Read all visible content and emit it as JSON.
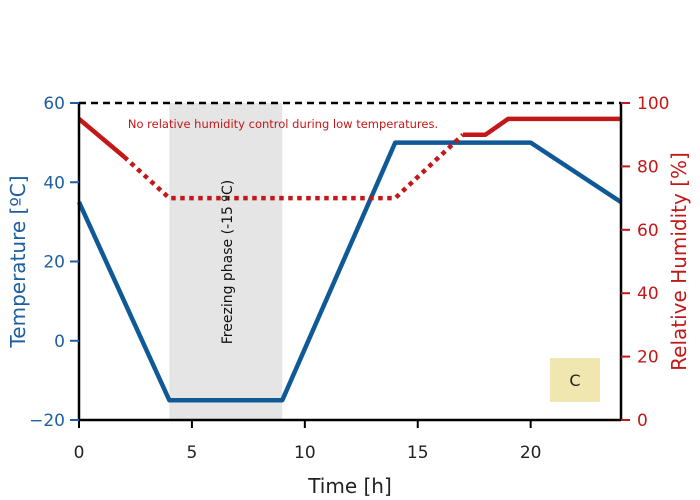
{
  "chart_data": {
    "type": "line",
    "title": "",
    "xlabel": "Time [h]",
    "ylabel_left": "Temperature [ºC]",
    "ylabel_right": "Relative Humidity [%]",
    "xlim": [
      0,
      24
    ],
    "ylim_left": [
      -20,
      60
    ],
    "ylim_right": [
      0,
      100
    ],
    "grid": false,
    "legend": "none",
    "x_ticks": [
      "0",
      "5",
      "10",
      "15",
      "20"
    ],
    "y_left_ticks": [
      "60",
      "40",
      "20",
      "0",
      "−20"
    ],
    "y_right_ticks": [
      "100",
      "80",
      "60",
      "40",
      "20",
      "0"
    ],
    "colors": {
      "temperature": "#0f5a96",
      "humidity": "#c41818",
      "left_axis": "#1f5f9f",
      "right_axis": "#c41818",
      "shade": "#e5e5e5",
      "badge": "#f0e6b0"
    },
    "series": [
      {
        "axis": "left",
        "style": "solid",
        "x": [
          0,
          4,
          9,
          14,
          20,
          24
        ],
        "y": [
          35,
          -15,
          -15,
          50,
          50,
          35
        ]
      },
      {
        "axis": "right",
        "style": "solid",
        "x": [
          0,
          2
        ],
        "y": [
          95,
          83
        ]
      },
      {
        "axis": "right",
        "style": "dotted",
        "x": [
          2,
          4,
          14,
          17
        ],
        "y": [
          83,
          70,
          70,
          90
        ]
      },
      {
        "axis": "right",
        "style": "solid",
        "x": [
          17,
          18,
          19,
          24
        ],
        "y": [
          90,
          90,
          95,
          95
        ]
      }
    ],
    "reference_line": {
      "y_left": 60,
      "style": "dashed"
    },
    "shaded_region": {
      "x": [
        4,
        9
      ],
      "label": "Freezing phase (-15 ºC)"
    },
    "annotations": {
      "note": "No relative humidity control during low temperatures.",
      "badge": "C"
    }
  }
}
